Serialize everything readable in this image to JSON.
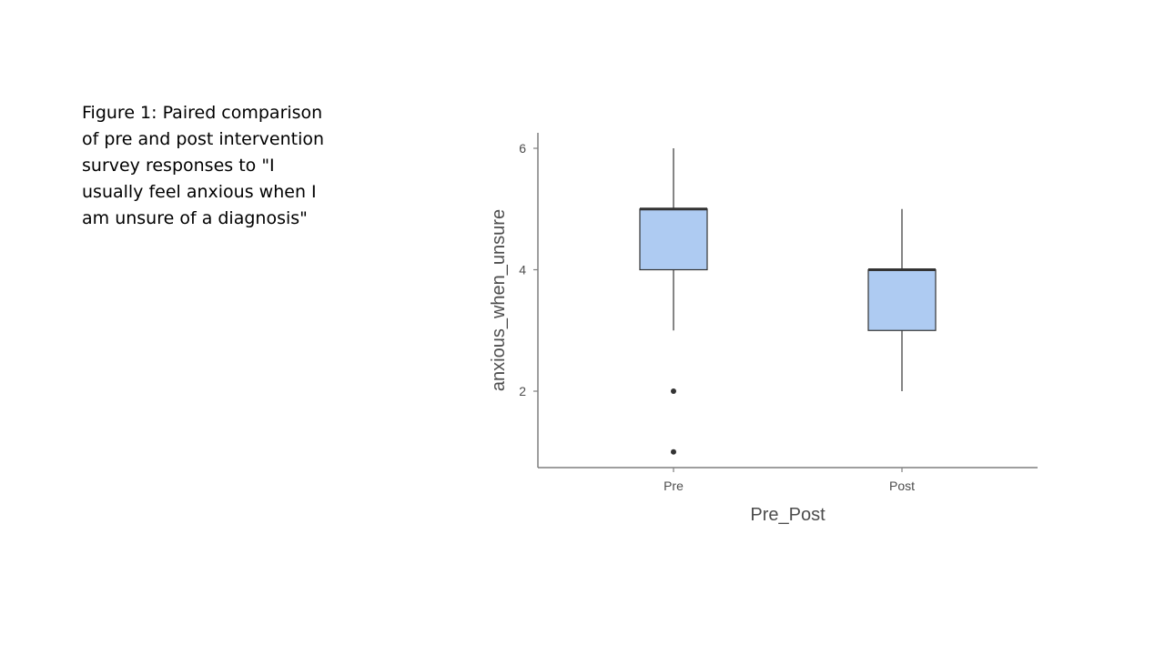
{
  "caption": "Figure 1: Paired comparison of pre and post intervention survey responses to \"I usually feel anxious when I am unsure of a diagnosis\"",
  "chart_data": {
    "type": "boxplot",
    "categories": [
      "Pre",
      "Post"
    ],
    "boxes": [
      {
        "category": "Pre",
        "whisker_low": 3,
        "q1": 4,
        "median": 5,
        "q3": 5,
        "whisker_high": 6,
        "outliers": [
          2,
          1
        ]
      },
      {
        "category": "Post",
        "whisker_low": 2,
        "q1": 3,
        "median": 4,
        "q3": 4,
        "whisker_high": 5,
        "outliers": []
      }
    ],
    "xlabel": "Pre_Post",
    "ylabel": "anxious_when_unsure",
    "yticks": [
      2,
      4,
      6
    ],
    "ylim": [
      0.75,
      6.25
    ],
    "grid": false,
    "colors": {
      "box_fill": "#aecbf2",
      "box_stroke": "#333333",
      "axis": "#7f7f7f",
      "text": "#4d4d4d"
    }
  }
}
